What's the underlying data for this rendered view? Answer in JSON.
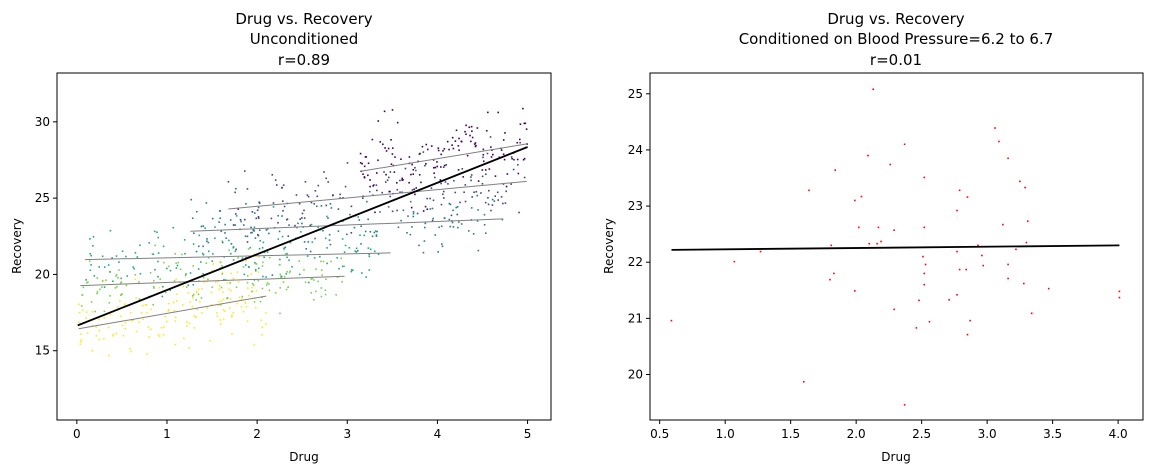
{
  "chart_data": [
    {
      "type": "scatter",
      "title": [
        "Drug vs. Recovery",
        "Unconditioned",
        "r=0.89"
      ],
      "xlabel": "Drug",
      "ylabel": "Recovery",
      "xlim": [
        -0.22,
        5.26
      ],
      "ylim": [
        10.46,
        33.2
      ],
      "xticks": [
        0,
        1,
        2,
        3,
        4,
        5
      ],
      "yticks": [
        15,
        20,
        25,
        30
      ],
      "grid": false,
      "legend": "none",
      "correlation": 0.89,
      "regression_line": {
        "color": "#000000",
        "from": [
          0.01,
          16.66
        ],
        "to": [
          5.0,
          28.35
        ]
      },
      "strata": [
        {
          "color": "#fde725",
          "x_range": [
            0.02,
            2.1
          ],
          "line": {
            "from": [
              0.02,
              16.44
            ],
            "to": [
              2.1,
              18.58
            ]
          },
          "n": 170,
          "sd": 1.3
        },
        {
          "color": "#7ad151",
          "x_range": [
            0.04,
            2.97
          ],
          "line": {
            "from": [
              0.04,
              19.27
            ],
            "to": [
              2.97,
              19.88
            ]
          },
          "n": 150,
          "sd": 1.0
        },
        {
          "color": "#22a884",
          "x_range": [
            0.09,
            3.48
          ],
          "line": {
            "from": [
              0.09,
              20.97
            ],
            "to": [
              3.48,
              21.41
            ]
          },
          "n": 150,
          "sd": 1.0
        },
        {
          "color": "#2a788e",
          "x_range": [
            1.26,
            4.73
          ],
          "line": {
            "from": [
              1.26,
              22.83
            ],
            "to": [
              4.73,
              23.64
            ]
          },
          "n": 150,
          "sd": 1.0
        },
        {
          "color": "#414487",
          "x_range": [
            1.68,
            4.99
          ],
          "line": {
            "from": [
              1.68,
              24.29
            ],
            "to": [
              4.99,
              26.1
            ]
          },
          "n": 150,
          "sd": 1.1
        },
        {
          "color": "#440154",
          "x_range": [
            3.14,
            5.0
          ],
          "line": {
            "from": [
              3.14,
              26.75
            ],
            "to": [
              5.0,
              28.56
            ]
          },
          "n": 150,
          "sd": 1.4
        }
      ],
      "stratum_line_color": "#808080"
    },
    {
      "type": "scatter",
      "title": [
        "Drug vs. Recovery",
        "Conditioned on Blood Pressure=6.2 to 6.7",
        "r=0.01"
      ],
      "xlabel": "Drug",
      "ylabel": "Recovery",
      "xlim": [
        0.426,
        4.19
      ],
      "ylim": [
        19.19,
        25.37
      ],
      "xticks": [
        0.5,
        1.0,
        1.5,
        2.0,
        2.5,
        3.0,
        3.5,
        4.0
      ],
      "xtick_labels": [
        "0.5",
        "1.0",
        "1.5",
        "2.0",
        "2.5",
        "3.0",
        "3.5",
        "4.0"
      ],
      "yticks": [
        20,
        21,
        22,
        23,
        24,
        25
      ],
      "grid": false,
      "legend": "none",
      "correlation": 0.01,
      "point_color": "#ff0000",
      "regression_line": {
        "color": "#000000",
        "from": [
          0.59,
          22.22
        ],
        "to": [
          4.01,
          22.3
        ]
      },
      "points": [
        [
          2.13,
          25.08
        ],
        [
          3.06,
          24.39
        ],
        [
          3.09,
          24.15
        ],
        [
          2.37,
          24.1
        ],
        [
          3.16,
          23.85
        ],
        [
          2.09,
          23.9
        ],
        [
          2.26,
          23.74
        ],
        [
          1.84,
          23.64
        ],
        [
          2.52,
          23.51
        ],
        [
          3.25,
          23.44
        ],
        [
          3.29,
          23.33
        ],
        [
          1.64,
          23.28
        ],
        [
          2.79,
          23.28
        ],
        [
          2.04,
          23.17
        ],
        [
          2.85,
          23.16
        ],
        [
          1.99,
          23.1
        ],
        [
          2.77,
          22.92
        ],
        [
          3.31,
          22.73
        ],
        [
          3.12,
          22.67
        ],
        [
          2.02,
          22.62
        ],
        [
          2.17,
          22.62
        ],
        [
          2.52,
          22.62
        ],
        [
          2.29,
          22.57
        ],
        [
          2.1,
          22.33
        ],
        [
          2.16,
          22.33
        ],
        [
          2.19,
          22.37
        ],
        [
          1.81,
          22.3
        ],
        [
          2.93,
          22.3
        ],
        [
          3.3,
          22.35
        ],
        [
          1.27,
          22.19
        ],
        [
          2.77,
          22.19
        ],
        [
          3.22,
          22.23
        ],
        [
          2.51,
          22.1
        ],
        [
          2.96,
          22.12
        ],
        [
          1.07,
          22.01
        ],
        [
          2.53,
          21.96
        ],
        [
          2.97,
          21.94
        ],
        [
          3.16,
          21.96
        ],
        [
          1.83,
          21.8
        ],
        [
          2.52,
          21.8
        ],
        [
          2.79,
          21.87
        ],
        [
          2.84,
          21.87
        ],
        [
          1.8,
          21.69
        ],
        [
          3.16,
          21.71
        ],
        [
          2.52,
          21.6
        ],
        [
          3.28,
          21.62
        ],
        [
          1.99,
          21.49
        ],
        [
          3.47,
          21.53
        ],
        [
          4.01,
          21.48
        ],
        [
          4.01,
          21.37
        ],
        [
          2.77,
          21.42
        ],
        [
          2.48,
          21.32
        ],
        [
          2.71,
          21.33
        ],
        [
          2.29,
          21.16
        ],
        [
          3.34,
          21.09
        ],
        [
          0.59,
          20.96
        ],
        [
          2.56,
          20.94
        ],
        [
          2.87,
          20.96
        ],
        [
          2.46,
          20.83
        ],
        [
          2.85,
          20.71
        ],
        [
          1.6,
          19.87
        ],
        [
          2.37,
          19.46
        ]
      ]
    }
  ]
}
